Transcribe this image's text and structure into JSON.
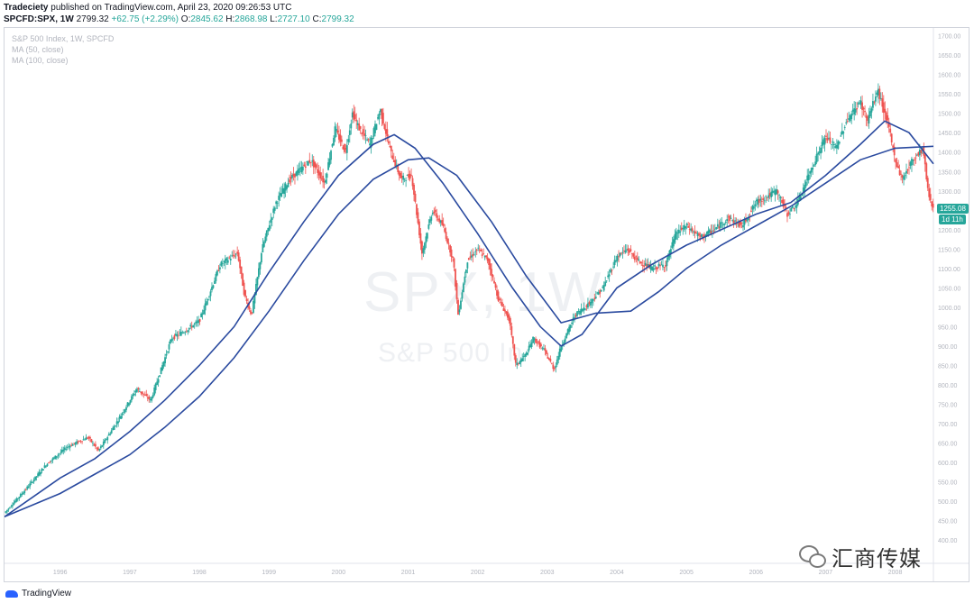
{
  "header": {
    "author": "Tradeciety",
    "published_text": " published on TradingView.com, April 23, 2020 09:26:53 UTC",
    "symbol": "SPCFD:SPX, 1W",
    "last": "2799.32",
    "change": "+62.75 (+2.29%)",
    "open_label": "O:",
    "open": "2845.62",
    "high_label": "H:",
    "high": "2868.98",
    "low_label": "L:",
    "low": "2727.10",
    "close_label": "C:",
    "close": "2799.32"
  },
  "legend": {
    "line1": "S&P 500 Index, 1W, SPCFD",
    "line2": "MA (50, close)",
    "line3": "MA (100, close)"
  },
  "watermark": {
    "symbol": "SPX, 1W",
    "name": "S&P 500 In"
  },
  "price_badge": "1255.08",
  "time_badge": "1d 11h",
  "footer": {
    "brand": "TradingView"
  },
  "overlay_logo": {
    "text": "汇商传媒",
    "icon": "wechat-icon"
  },
  "colors": {
    "up": "#26a69a",
    "down": "#ef5350",
    "ma": "#2a4a9f",
    "axis_text": "#b2b5be"
  },
  "chart_data": {
    "type": "candlestick",
    "title": "S&P 500 Index, 1W, SPCFD",
    "x_ticks": [
      "1996",
      "1997",
      "1998",
      "1999",
      "2000",
      "2001",
      "2002",
      "2003",
      "2004",
      "2005",
      "2006",
      "2007",
      "2008"
    ],
    "y_ticks": [
      400,
      450,
      500,
      550,
      600,
      650,
      700,
      750,
      800,
      850,
      900,
      950,
      1000,
      1050,
      1100,
      1150,
      1200,
      1250,
      1300,
      1350,
      1400,
      1450,
      1500,
      1550,
      1600,
      1650,
      1700
    ],
    "y_tick_labels": [
      "400.00",
      "450.00",
      "500.00",
      "550.00",
      "600.00",
      "650.00",
      "700.00",
      "750.00",
      "800.00",
      "850.00",
      "900.00",
      "950.00",
      "1000.00",
      "1050.00",
      "1100.00",
      "1150.00",
      "1200.00",
      "1250.00",
      "1300.00",
      "1350.00",
      "1400.00",
      "1450.00",
      "1500.00",
      "1550.00",
      "1600.00",
      "1650.00",
      "1700.00"
    ],
    "ylim": [
      340,
      1720
    ],
    "xlim": [
      1995.2,
      2008.55
    ],
    "price_path": [
      [
        1995.2,
        470
      ],
      [
        1995.5,
        530
      ],
      [
        1995.8,
        595
      ],
      [
        1996.1,
        640
      ],
      [
        1996.4,
        665
      ],
      [
        1996.55,
        630
      ],
      [
        1996.8,
        700
      ],
      [
        1997.1,
        790
      ],
      [
        1997.3,
        760
      ],
      [
        1997.6,
        920
      ],
      [
        1997.8,
        940
      ],
      [
        1998.0,
        965
      ],
      [
        1998.3,
        1110
      ],
      [
        1998.55,
        1140
      ],
      [
        1998.65,
        1030
      ],
      [
        1998.75,
        980
      ],
      [
        1998.9,
        1150
      ],
      [
        1999.1,
        1270
      ],
      [
        1999.3,
        1330
      ],
      [
        1999.6,
        1380
      ],
      [
        1999.8,
        1320
      ],
      [
        1999.95,
        1460
      ],
      [
        2000.1,
        1400
      ],
      [
        2000.2,
        1500
      ],
      [
        2000.3,
        1460
      ],
      [
        2000.45,
        1420
      ],
      [
        2000.6,
        1510
      ],
      [
        2000.75,
        1400
      ],
      [
        2000.9,
        1330
      ],
      [
        2001.05,
        1340
      ],
      [
        2001.2,
        1140
      ],
      [
        2001.35,
        1250
      ],
      [
        2001.5,
        1210
      ],
      [
        2001.65,
        1120
      ],
      [
        2001.72,
        980
      ],
      [
        2001.85,
        1120
      ],
      [
        2002.0,
        1150
      ],
      [
        2002.15,
        1120
      ],
      [
        2002.3,
        1020
      ],
      [
        2002.45,
        970
      ],
      [
        2002.55,
        850
      ],
      [
        2002.7,
        880
      ],
      [
        2002.8,
        920
      ],
      [
        2002.95,
        890
      ],
      [
        2003.1,
        840
      ],
      [
        2003.2,
        900
      ],
      [
        2003.4,
        980
      ],
      [
        2003.6,
        1010
      ],
      [
        2003.8,
        1050
      ],
      [
        2004.0,
        1130
      ],
      [
        2004.15,
        1150
      ],
      [
        2004.3,
        1120
      ],
      [
        2004.5,
        1100
      ],
      [
        2004.7,
        1110
      ],
      [
        2004.85,
        1190
      ],
      [
        2005.0,
        1210
      ],
      [
        2005.2,
        1180
      ],
      [
        2005.4,
        1200
      ],
      [
        2005.6,
        1230
      ],
      [
        2005.8,
        1210
      ],
      [
        2006.0,
        1270
      ],
      [
        2006.3,
        1300
      ],
      [
        2006.45,
        1240
      ],
      [
        2006.6,
        1270
      ],
      [
        2006.8,
        1360
      ],
      [
        2007.0,
        1440
      ],
      [
        2007.15,
        1410
      ],
      [
        2007.3,
        1480
      ],
      [
        2007.5,
        1530
      ],
      [
        2007.6,
        1480
      ],
      [
        2007.75,
        1560
      ],
      [
        2007.9,
        1470
      ],
      [
        2008.0,
        1380
      ],
      [
        2008.1,
        1330
      ],
      [
        2008.25,
        1380
      ],
      [
        2008.4,
        1410
      ],
      [
        2008.48,
        1290
      ],
      [
        2008.55,
        1255
      ]
    ],
    "series": [
      {
        "name": "MA (50, close)",
        "points": [
          [
            1995.2,
            460
          ],
          [
            1995.6,
            510
          ],
          [
            1996.0,
            560
          ],
          [
            1996.5,
            610
          ],
          [
            1997.0,
            680
          ],
          [
            1997.5,
            760
          ],
          [
            1998.0,
            850
          ],
          [
            1998.5,
            950
          ],
          [
            1999.0,
            1090
          ],
          [
            1999.5,
            1220
          ],
          [
            2000.0,
            1340
          ],
          [
            2000.5,
            1420
          ],
          [
            2000.8,
            1445
          ],
          [
            2001.1,
            1410
          ],
          [
            2001.5,
            1320
          ],
          [
            2002.0,
            1190
          ],
          [
            2002.5,
            1050
          ],
          [
            2002.9,
            950
          ],
          [
            2003.2,
            900
          ],
          [
            2003.5,
            930
          ],
          [
            2004.0,
            1050
          ],
          [
            2004.5,
            1110
          ],
          [
            2005.0,
            1160
          ],
          [
            2005.5,
            1200
          ],
          [
            2006.0,
            1240
          ],
          [
            2006.5,
            1270
          ],
          [
            2007.0,
            1340
          ],
          [
            2007.5,
            1420
          ],
          [
            2007.85,
            1480
          ],
          [
            2008.2,
            1450
          ],
          [
            2008.55,
            1370
          ]
        ]
      },
      {
        "name": "MA (100, close)",
        "points": [
          [
            1995.2,
            460
          ],
          [
            1995.6,
            490
          ],
          [
            1996.0,
            520
          ],
          [
            1996.5,
            570
          ],
          [
            1997.0,
            620
          ],
          [
            1997.5,
            690
          ],
          [
            1998.0,
            770
          ],
          [
            1998.5,
            870
          ],
          [
            1999.0,
            990
          ],
          [
            1999.5,
            1120
          ],
          [
            2000.0,
            1240
          ],
          [
            2000.5,
            1330
          ],
          [
            2001.0,
            1380
          ],
          [
            2001.3,
            1385
          ],
          [
            2001.7,
            1340
          ],
          [
            2002.2,
            1220
          ],
          [
            2002.7,
            1080
          ],
          [
            2003.2,
            960
          ],
          [
            2003.7,
            985
          ],
          [
            2004.2,
            990
          ],
          [
            2004.6,
            1040
          ],
          [
            2005.0,
            1100
          ],
          [
            2005.5,
            1160
          ],
          [
            2006.0,
            1210
          ],
          [
            2006.5,
            1260
          ],
          [
            2007.0,
            1320
          ],
          [
            2007.5,
            1380
          ],
          [
            2008.0,
            1410
          ],
          [
            2008.55,
            1415
          ]
        ]
      }
    ],
    "last_price": 1255.08,
    "grid": false
  }
}
